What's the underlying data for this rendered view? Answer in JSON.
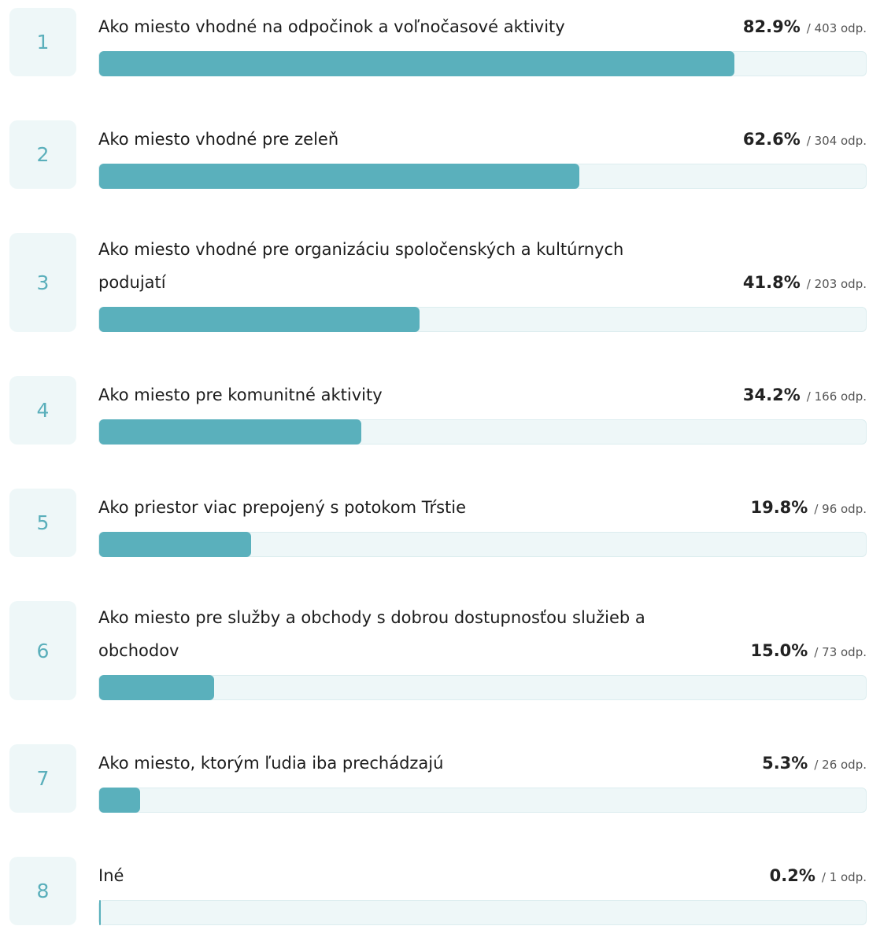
{
  "chart_data": {
    "type": "bar",
    "orientation": "horizontal",
    "color": "#5ab0bc",
    "xlim": [
      0,
      100
    ],
    "ranks": [
      1,
      2,
      3,
      4,
      5,
      6,
      7,
      8
    ],
    "categories": [
      "Ako miesto vhodné na odpočinok a voľnočasové aktivity",
      "Ako miesto vhodné pre zeleň",
      "Ako miesto vhodné pre organizáciu spoločenských a kultúrnych podujatí",
      "Ako miesto pre komunitné aktivity",
      "Ako priestor viac prepojený s potokom Tŕstie",
      "Ako miesto pre služby a obchody s dobrou dostupnosťou služieb a obchodov",
      "Ako miesto, ktorým ľudia iba prechádzajú",
      "Iné"
    ],
    "values": [
      82.9,
      62.6,
      41.8,
      34.2,
      19.8,
      15.0,
      5.3,
      0.2
    ],
    "value_labels": [
      "82.9%",
      "62.6%",
      "41.8%",
      "34.2%",
      "19.8%",
      "15.0%",
      "5.3%",
      "0.2%"
    ],
    "count_labels": [
      "/ 403 odp.",
      "/ 304 odp.",
      "/ 203 odp.",
      "/ 166 odp.",
      "/ 96 odp.",
      "/ 73 odp.",
      "/ 26 odp.",
      "/ 1 odp."
    ]
  }
}
